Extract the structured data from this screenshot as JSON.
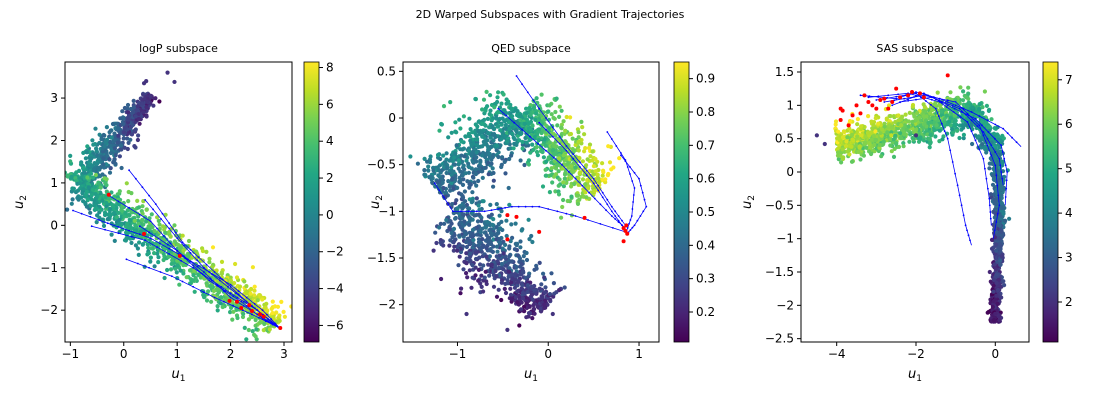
{
  "figure": {
    "suptitle": "2D Warped Subspaces with Gradient Trajectories"
  },
  "chart_data": [
    {
      "type": "scatter",
      "title": "logP subspace",
      "xlabel": "u1",
      "ylabel": "u2",
      "xlim": [
        -1.1,
        3.15
      ],
      "ylim": [
        -2.75,
        3.85
      ],
      "xticks": [
        -1,
        0,
        1,
        2,
        3
      ],
      "yticks": [
        -2,
        -1,
        0,
        1,
        2,
        3
      ],
      "colorbar": {
        "min": -6.9,
        "max": 8.3,
        "ticks": [
          -6,
          -4,
          -2,
          0,
          2,
          4,
          6,
          8
        ],
        "colormap": "viridis"
      },
      "point_cloud": {
        "points": 1500,
        "arms": [
          {
            "from": [
              -0.85,
              1.0
            ],
            "to": [
              0.05,
              2.35
            ],
            "value_from": 1.5,
            "value_to": -3.0,
            "spread": 0.16
          },
          {
            "from": [
              0.05,
              2.35
            ],
            "to": [
              0.5,
              3.1
            ],
            "value_from": -3.0,
            "value_to": -4.6,
            "spread": 0.09
          },
          {
            "from": [
              -0.85,
              1.0
            ],
            "to": [
              2.85,
              -2.35
            ],
            "value_from": 1.5,
            "value_to": 6.5,
            "spread": 0.2
          }
        ],
        "outliers": [
          [
            0.82,
            3.6
          ],
          [
            0.42,
            3.4
          ],
          [
            0.38,
            3.35
          ],
          [
            0.5,
            3.05
          ],
          [
            0.95,
            3.38
          ]
        ]
      },
      "trajectories": [
        [
          [
            -0.95,
            0.35
          ],
          [
            -0.3,
            0.05
          ],
          [
            0.5,
            -0.3
          ],
          [
            1.2,
            -0.8
          ],
          [
            2.0,
            -1.4
          ],
          [
            2.6,
            -2.0
          ],
          [
            2.92,
            -2.42
          ]
        ],
        [
          [
            -0.6,
            -0.02
          ],
          [
            0.4,
            -0.35
          ],
          [
            1.3,
            -1.0
          ],
          [
            2.0,
            -1.6
          ],
          [
            2.5,
            -2.0
          ],
          [
            2.9,
            -2.42
          ]
        ],
        [
          [
            0.3,
            -0.02
          ],
          [
            1.0,
            -0.6
          ],
          [
            1.6,
            -1.3
          ],
          [
            2.2,
            -1.8
          ],
          [
            2.6,
            -2.2
          ],
          [
            2.92,
            -2.42
          ]
        ],
        [
          [
            -0.3,
            0.72
          ],
          [
            0.5,
            0.1
          ],
          [
            1.0,
            -0.6
          ],
          [
            1.5,
            -1.1
          ],
          [
            2.0,
            -1.7
          ],
          [
            2.5,
            -2.1
          ],
          [
            2.92,
            -2.42
          ]
        ],
        [
          [
            0.1,
            1.3
          ],
          [
            0.6,
            0.5
          ],
          [
            1.1,
            -0.4
          ],
          [
            1.7,
            -1.1
          ],
          [
            2.3,
            -1.8
          ],
          [
            2.92,
            -2.42
          ]
        ],
        [
          [
            0.4,
            0.6
          ],
          [
            1.0,
            -0.3
          ],
          [
            1.5,
            -1.0
          ],
          [
            2.1,
            -1.6
          ],
          [
            2.5,
            -2.0
          ],
          [
            2.92,
            -2.42
          ]
        ],
        [
          [
            0.05,
            -0.8
          ],
          [
            0.9,
            -1.2
          ],
          [
            1.7,
            -1.7
          ],
          [
            2.4,
            -2.1
          ],
          [
            2.92,
            -2.42
          ]
        ]
      ],
      "endpoints": [
        [
          -0.28,
          0.72
        ],
        [
          0.38,
          -0.2
        ],
        [
          1.05,
          -0.72
        ],
        [
          1.98,
          -1.78
        ],
        [
          2.2,
          -1.95
        ],
        [
          2.4,
          -2.02
        ],
        [
          2.55,
          -2.1
        ],
        [
          2.62,
          -2.15
        ],
        [
          2.93,
          -2.42
        ],
        [
          2.35,
          -1.88
        ],
        [
          2.12,
          -1.8
        ]
      ]
    },
    {
      "type": "scatter",
      "title": "QED subspace",
      "xlabel": "u1",
      "ylabel": "u2",
      "xlim": [
        -1.6,
        1.22
      ],
      "ylim": [
        -2.4,
        0.6
      ],
      "xticks": [
        -1,
        0,
        1
      ],
      "yticks": [
        -2.0,
        -1.5,
        -1.0,
        -0.5,
        0.0,
        0.5
      ],
      "colorbar": {
        "min": 0.11,
        "max": 0.95,
        "ticks": [
          0.2,
          0.3,
          0.4,
          0.5,
          0.6,
          0.7,
          0.8,
          0.9
        ],
        "colormap": "viridis"
      },
      "point_cloud": {
        "points": 1800,
        "arms": [
          {
            "from": [
              -1.25,
              -0.75
            ],
            "to": [
              -0.3,
              0.05
            ],
            "value_from": 0.4,
            "value_to": 0.55,
            "spread": 0.16
          },
          {
            "from": [
              -0.3,
              0.05
            ],
            "to": [
              0.55,
              -0.78
            ],
            "value_from": 0.6,
            "value_to": 0.88,
            "spread": 0.16
          },
          {
            "from": [
              -1.05,
              -1.0
            ],
            "to": [
              -0.45,
              -1.65
            ],
            "value_from": 0.4,
            "value_to": 0.3,
            "spread": 0.2
          },
          {
            "from": [
              -0.45,
              -1.65
            ],
            "to": [
              -0.05,
              -2.05
            ],
            "value_from": 0.3,
            "value_to": 0.2,
            "spread": 0.12
          }
        ],
        "outliers": [
          [
            -0.45,
            -2.27
          ],
          [
            -0.3,
            -2.05
          ],
          [
            0.05,
            -2.1
          ],
          [
            -0.9,
            -2.1
          ]
        ]
      },
      "trajectories": [
        [
          [
            -0.35,
            0.45
          ],
          [
            -0.1,
            0.1
          ],
          [
            0.2,
            -0.3
          ],
          [
            0.5,
            -0.65
          ],
          [
            0.7,
            -0.95
          ],
          [
            0.85,
            -1.15
          ]
        ],
        [
          [
            -0.55,
            0.1
          ],
          [
            -0.2,
            -0.2
          ],
          [
            0.15,
            -0.5
          ],
          [
            0.45,
            -0.8
          ],
          [
            0.7,
            -1.05
          ],
          [
            0.85,
            -1.18
          ]
        ],
        [
          [
            -0.1,
            -0.05
          ],
          [
            0.2,
            -0.35
          ],
          [
            0.5,
            -0.7
          ],
          [
            0.7,
            -1.0
          ],
          [
            0.85,
            -1.2
          ]
        ],
        [
          [
            0.65,
            -0.15
          ],
          [
            0.85,
            -0.45
          ],
          [
            0.95,
            -0.75
          ],
          [
            0.92,
            -1.05
          ],
          [
            0.86,
            -1.22
          ]
        ],
        [
          [
            0.8,
            -0.4
          ],
          [
            1.0,
            -0.65
          ],
          [
            1.08,
            -0.95
          ],
          [
            0.95,
            -1.15
          ],
          [
            0.86,
            -1.25
          ]
        ],
        [
          [
            -1.25,
            -0.7
          ],
          [
            -1.05,
            -1.0
          ],
          [
            -0.7,
            -1.0
          ],
          [
            -0.4,
            -0.95
          ],
          [
            -0.1,
            -0.95
          ],
          [
            0.3,
            -1.05
          ],
          [
            0.85,
            -1.22
          ]
        ]
      ],
      "endpoints": [
        [
          -0.45,
          -1.04
        ],
        [
          -0.35,
          -1.06
        ],
        [
          -0.45,
          -1.3
        ],
        [
          -0.1,
          -1.22
        ],
        [
          0.4,
          -1.07
        ],
        [
          0.83,
          -1.18
        ],
        [
          0.85,
          -1.21
        ],
        [
          0.87,
          -1.24
        ],
        [
          0.83,
          -1.32
        ],
        [
          0.86,
          -1.15
        ]
      ]
    },
    {
      "type": "scatter",
      "title": "SAS subspace",
      "xlabel": "u1",
      "ylabel": "u2",
      "xlim": [
        -4.9,
        0.85
      ],
      "ylim": [
        -2.55,
        1.65
      ],
      "xticks": [
        -4,
        -2,
        0
      ],
      "yticks": [
        -2.5,
        -2.0,
        -1.5,
        -1.0,
        -0.5,
        0.0,
        0.5,
        1.0,
        1.5
      ],
      "colorbar": {
        "min": 1.1,
        "max": 7.4,
        "ticks": [
          2,
          3,
          4,
          5,
          6,
          7
        ],
        "colormap": "viridis"
      },
      "point_cloud": {
        "points": 1800,
        "arms": [
          {
            "from": [
              -4.0,
              0.4
            ],
            "to": [
              -1.8,
              0.7
            ],
            "value_from": 6.7,
            "value_to": 5.8,
            "spread": 0.13
          },
          {
            "from": [
              -1.8,
              0.7
            ],
            "to": [
              -0.6,
              0.95
            ],
            "value_from": 5.8,
            "value_to": 5.0,
            "spread": 0.15
          },
          {
            "from": [
              -0.6,
              0.95
            ],
            "to": [
              0.05,
              0.3
            ],
            "value_from": 4.8,
            "value_to": 4.0,
            "spread": 0.12
          },
          {
            "from": [
              0.05,
              0.3
            ],
            "to": [
              0.1,
              -0.8
            ],
            "value_from": 3.8,
            "value_to": 3.0,
            "spread": 0.08
          },
          {
            "from": [
              0.1,
              -0.8
            ],
            "to": [
              0.0,
              -2.25
            ],
            "value_from": 2.8,
            "value_to": 1.5,
            "spread": 0.06
          }
        ],
        "outliers": [
          [
            -4.5,
            0.55
          ],
          [
            -4.3,
            0.42
          ],
          [
            -2.0,
            0.55
          ]
        ]
      },
      "trajectories": [
        [
          [
            -3.4,
            1.15
          ],
          [
            -2.5,
            1.1
          ],
          [
            -2.0,
            1.2
          ],
          [
            -1.4,
            1.1
          ],
          [
            -0.6,
            0.9
          ],
          [
            0.2,
            0.65
          ],
          [
            0.65,
            0.38
          ]
        ],
        [
          [
            -3.2,
            1.12
          ],
          [
            -2.2,
            1.18
          ],
          [
            -1.4,
            1.05
          ],
          [
            -0.7,
            0.75
          ],
          [
            -0.3,
            0.2
          ],
          [
            -0.15,
            -0.4
          ],
          [
            -0.1,
            -0.8
          ]
        ],
        [
          [
            -3.0,
            1.08
          ],
          [
            -2.0,
            1.18
          ],
          [
            -1.5,
            0.95
          ],
          [
            -1.2,
            0.5
          ],
          [
            -0.95,
            -0.2
          ],
          [
            -0.75,
            -0.8
          ],
          [
            -0.6,
            -1.1
          ]
        ],
        [
          [
            -2.8,
            1.05
          ],
          [
            -1.8,
            1.15
          ],
          [
            -1.0,
            1.05
          ],
          [
            -0.4,
            0.7
          ],
          [
            0.0,
            0.1
          ],
          [
            0.1,
            -0.5
          ],
          [
            -0.05,
            -1.0
          ]
        ],
        [
          [
            -2.6,
            1.0
          ],
          [
            -1.8,
            1.18
          ],
          [
            -1.2,
            1.0
          ],
          [
            -0.5,
            0.8
          ],
          [
            0.15,
            0.4
          ],
          [
            0.3,
            0.0
          ],
          [
            0.25,
            -0.5
          ]
        ],
        [
          [
            -2.4,
            1.05
          ],
          [
            -1.6,
            1.12
          ],
          [
            -0.9,
            0.95
          ],
          [
            -0.3,
            0.6
          ],
          [
            0.1,
            0.2
          ],
          [
            0.2,
            -0.2
          ]
        ]
      ],
      "endpoints": [
        [
          -3.9,
          0.95
        ],
        [
          -3.85,
          0.92
        ],
        [
          -3.9,
          0.78
        ],
        [
          -3.7,
          0.7
        ],
        [
          -3.5,
          1.0
        ],
        [
          -3.4,
          0.88
        ],
        [
          -3.2,
          1.05
        ],
        [
          -3.1,
          1.0
        ],
        [
          -3.0,
          0.95
        ],
        [
          -2.8,
          1.1
        ],
        [
          -2.7,
          0.95
        ],
        [
          -2.6,
          1.05
        ],
        [
          -2.4,
          1.12
        ],
        [
          -2.2,
          1.15
        ],
        [
          -2.1,
          1.2
        ],
        [
          -1.9,
          1.18
        ],
        [
          -1.8,
          1.12
        ],
        [
          -1.2,
          1.45
        ],
        [
          -2.5,
          1.25
        ],
        [
          -3.3,
          1.15
        ],
        [
          -3.6,
          0.85
        ],
        [
          -2.9,
          1.08
        ]
      ]
    }
  ]
}
